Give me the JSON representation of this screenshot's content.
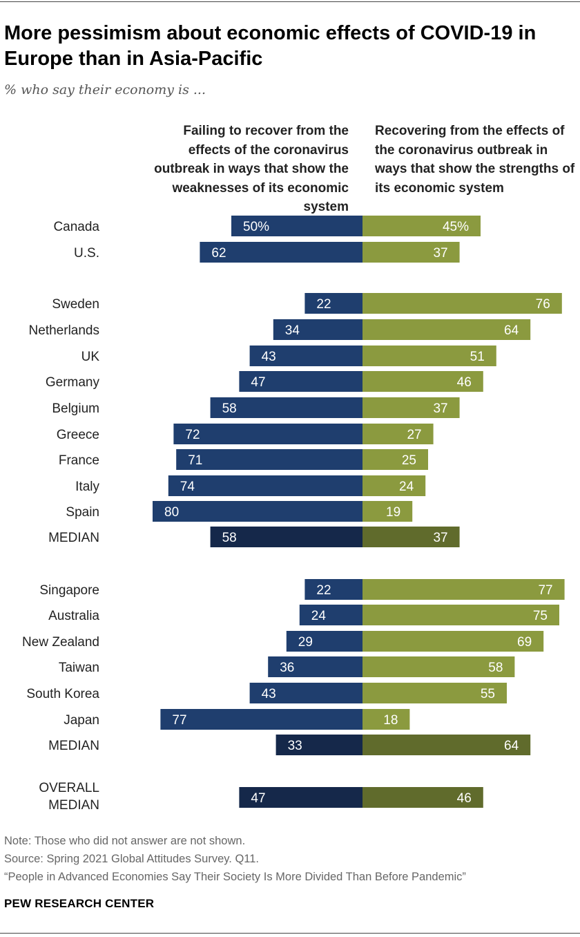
{
  "header": {
    "title": "More pessimism about economic effects of COVID-19 in Europe than in Asia-Pacific",
    "subtitle": "% who say their economy is ...",
    "left_column": "Failing to recover from the effects of the coronavirus outbreak in ways that show the weaknesses of its economic system",
    "right_column": "Recovering from the effects of the coronavirus outbreak in ways that show the strengths of its economic system"
  },
  "colors": {
    "failing": "#1f3e6e",
    "recovering": "#8b9a3f",
    "failing_median": "#15284a",
    "recovering_median": "#606b2c",
    "value_text": "#ffffff"
  },
  "chart_data": {
    "type": "bar",
    "orientation": "horizontal-diverging",
    "value_unit": "%",
    "series": [
      {
        "name": "Failing to recover from the effects of the coronavirus outbreak in ways that show the weaknesses of its economic system"
      },
      {
        "name": "Recovering from the effects of the coronavirus outbreak in ways that show the strengths of its economic system"
      }
    ],
    "rows": [
      {
        "label": "Canada",
        "failing": 50,
        "recovering": 45,
        "failing_text": "50%",
        "recovering_text": "45%",
        "median": false
      },
      {
        "label": "U.S.",
        "failing": 62,
        "recovering": 37,
        "median": false
      },
      {
        "label": "Sweden",
        "failing": 22,
        "recovering": 76,
        "median": false
      },
      {
        "label": "Netherlands",
        "failing": 34,
        "recovering": 64,
        "median": false
      },
      {
        "label": "UK",
        "failing": 43,
        "recovering": 51,
        "median": false
      },
      {
        "label": "Germany",
        "failing": 47,
        "recovering": 46,
        "median": false
      },
      {
        "label": "Belgium",
        "failing": 58,
        "recovering": 37,
        "median": false
      },
      {
        "label": "Greece",
        "failing": 72,
        "recovering": 27,
        "median": false
      },
      {
        "label": "France",
        "failing": 71,
        "recovering": 25,
        "median": false
      },
      {
        "label": "Italy",
        "failing": 74,
        "recovering": 24,
        "median": false
      },
      {
        "label": "Spain",
        "failing": 80,
        "recovering": 19,
        "median": false
      },
      {
        "label": "MEDIAN",
        "failing": 58,
        "recovering": 37,
        "median": true
      },
      {
        "label": "Singapore",
        "failing": 22,
        "recovering": 77,
        "median": false
      },
      {
        "label": "Australia",
        "failing": 24,
        "recovering": 75,
        "median": false
      },
      {
        "label": "New Zealand",
        "failing": 29,
        "recovering": 69,
        "median": false
      },
      {
        "label": "Taiwan",
        "failing": 36,
        "recovering": 58,
        "median": false
      },
      {
        "label": "South Korea",
        "failing": 43,
        "recovering": 55,
        "median": false
      },
      {
        "label": "Japan",
        "failing": 77,
        "recovering": 18,
        "median": false
      },
      {
        "label": "MEDIAN",
        "failing": 33,
        "recovering": 64,
        "median": true
      },
      {
        "label": "OVERALL\nMEDIAN",
        "failing": 47,
        "recovering": 46,
        "median": true
      }
    ]
  },
  "footer": {
    "note": "Note: Those who did not answer are not shown.",
    "source": "Source: Spring 2021 Global Attitudes Survey. Q11.",
    "report": "“People in Advanced Economies Say Their Society Is More Divided Than Before Pandemic”",
    "brand": "PEW RESEARCH CENTER"
  }
}
